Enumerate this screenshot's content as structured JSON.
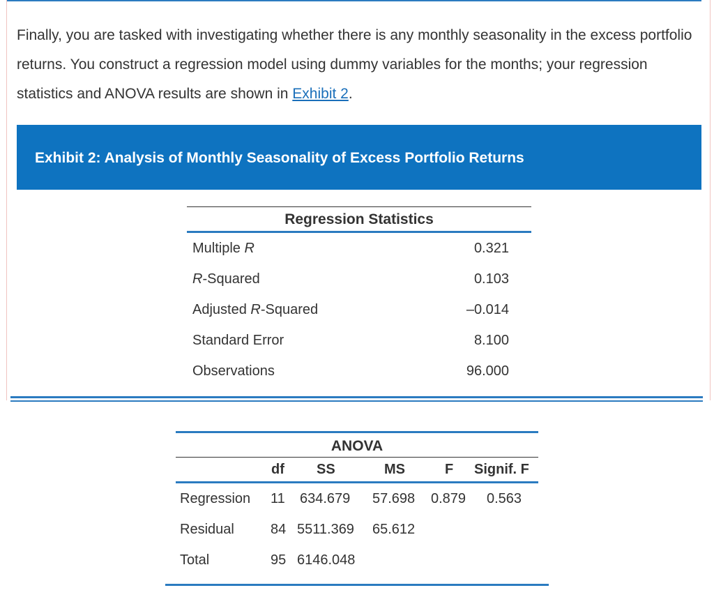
{
  "intro": {
    "text_before_link": "Finally, you are tasked with investigating whether there is any monthly seasonality in the excess portfolio returns. You construct a regression model using dummy variables for the months; your regression statistics and ANOVA results are shown in ",
    "link_text": "Exhibit 2",
    "text_after_link": "."
  },
  "exhibit": {
    "title": "Exhibit 2: Analysis of Monthly Seasonality of Excess Portfolio Returns"
  },
  "regression_statistics": {
    "title": "Regression Statistics",
    "rows": [
      {
        "label_pre": "Multiple ",
        "label_em": "R",
        "label_post": "",
        "value": "0.321"
      },
      {
        "label_pre": "",
        "label_em": "R",
        "label_post": "-Squared",
        "value": "0.103"
      },
      {
        "label_pre": "Adjusted ",
        "label_em": "R",
        "label_post": "-Squared",
        "value": "–0.014"
      },
      {
        "label_pre": "Standard Error",
        "label_em": "",
        "label_post": "",
        "value": "8.100"
      },
      {
        "label_pre": "Observations",
        "label_em": "",
        "label_post": "",
        "value": "96.000"
      }
    ]
  },
  "anova": {
    "title": "ANOVA",
    "headers": {
      "df": "df",
      "ss": "SS",
      "ms": "MS",
      "f": "F",
      "signif_f": "Signif. F"
    },
    "rows": [
      {
        "label": "Regression",
        "df": "11",
        "ss": "634.679",
        "ms": "57.698",
        "f": "0.879",
        "signif_f": "0.563"
      },
      {
        "label": "Residual",
        "df": "84",
        "ss": "5511.369",
        "ms": "65.612",
        "f": "",
        "signif_f": ""
      },
      {
        "label": "Total",
        "df": "95",
        "ss": "6146.048",
        "ms": "",
        "f": "",
        "signif_f": ""
      }
    ]
  },
  "colors": {
    "banner_bg": "#0e73c0",
    "rule_blue": "#2b7bc0",
    "link": "#1a6fba",
    "text": "#333333"
  }
}
